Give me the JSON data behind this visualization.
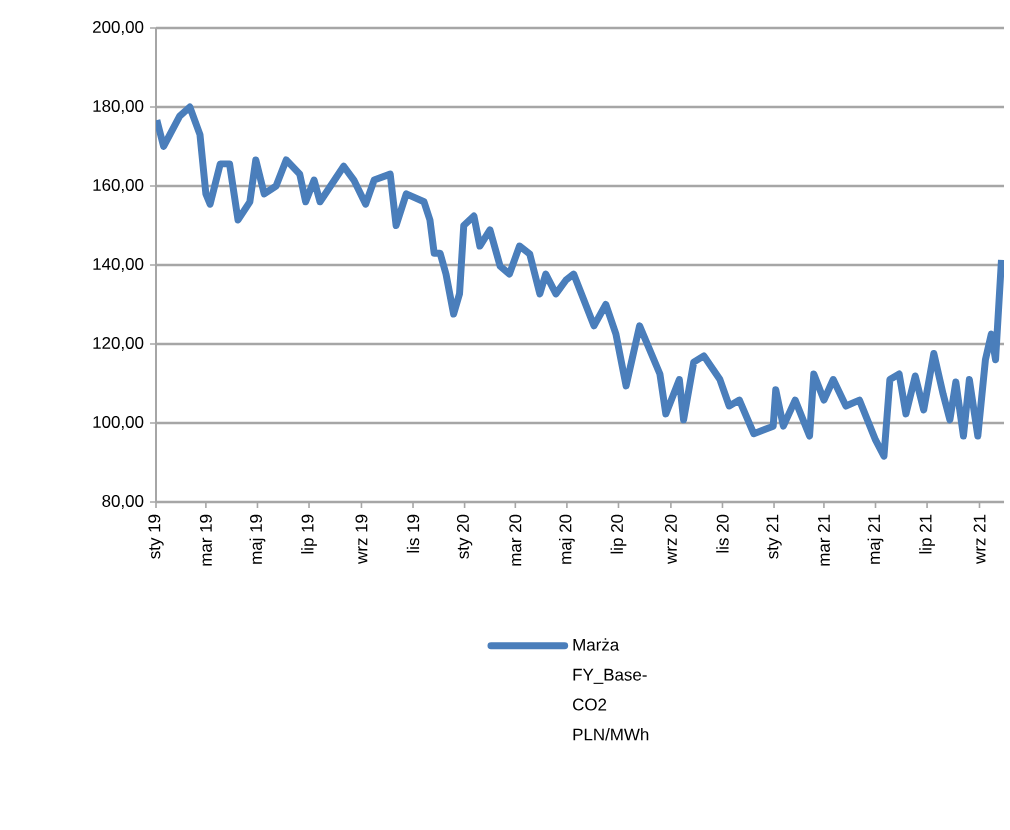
{
  "chart_data": {
    "type": "line",
    "legend": "bottom",
    "grid": "y",
    "line_style": "solid",
    "marker": "none",
    "xlim": [
      "2019-01-01",
      "2021-09-30"
    ],
    "xticks": [
      {
        "value": "2019-01-01",
        "label": "sty 19"
      },
      {
        "value": "2019-03-01",
        "label": "mar 19"
      },
      {
        "value": "2019-05-01",
        "label": "maj 19"
      },
      {
        "value": "2019-07-01",
        "label": "lip 19"
      },
      {
        "value": "2019-09-01",
        "label": "wrz 19"
      },
      {
        "value": "2019-11-01",
        "label": "lis 19"
      },
      {
        "value": "2020-01-01",
        "label": "sty 20"
      },
      {
        "value": "2020-03-01",
        "label": "mar 20"
      },
      {
        "value": "2020-05-01",
        "label": "maj 20"
      },
      {
        "value": "2020-07-01",
        "label": "lip 20"
      },
      {
        "value": "2020-09-01",
        "label": "wrz 20"
      },
      {
        "value": "2020-11-01",
        "label": "lis 20"
      },
      {
        "value": "2021-01-01",
        "label": "sty 21"
      },
      {
        "value": "2021-03-01",
        "label": "mar 21"
      },
      {
        "value": "2021-05-01",
        "label": "maj 21"
      },
      {
        "value": "2021-07-01",
        "label": "lip 21"
      },
      {
        "value": "2021-09-01",
        "label": "wrz 21"
      }
    ],
    "ylim": [
      80,
      200
    ],
    "yticks": [
      {
        "value": 80,
        "label": "80,00"
      },
      {
        "value": 100,
        "label": "100,00"
      },
      {
        "value": 120,
        "label": "120,00"
      },
      {
        "value": 140,
        "label": "140,00"
      },
      {
        "value": 160,
        "label": "160,00"
      },
      {
        "value": 180,
        "label": "180,00"
      },
      {
        "value": 200,
        "label": "200,00"
      }
    ],
    "series": [
      {
        "name": "Marża FY_Base-CO2 PLN/MWh",
        "color": "#4a7ebb",
        "x": [
          "2019-01-02",
          "2019-01-10",
          "2019-01-29",
          "2019-02-10",
          "2019-02-22",
          "2019-03-01",
          "2019-03-06",
          "2019-03-18",
          "2019-03-29",
          "2019-04-08",
          "2019-04-22",
          "2019-04-29",
          "2019-05-09",
          "2019-05-23",
          "2019-06-04",
          "2019-06-20",
          "2019-06-27",
          "2019-07-07",
          "2019-07-14",
          "2019-08-11",
          "2019-08-23",
          "2019-09-06",
          "2019-09-16",
          "2019-10-05",
          "2019-10-12",
          "2019-10-24",
          "2019-11-14",
          "2019-11-21",
          "2019-11-26",
          "2019-12-03",
          "2019-12-10",
          "2019-12-19",
          "2019-12-26",
          "2019-12-31",
          "2020-01-12",
          "2020-01-19",
          "2020-01-31",
          "2020-02-12",
          "2020-02-23",
          "2020-03-06",
          "2020-03-18",
          "2020-03-30",
          "2020-04-06",
          "2020-04-18",
          "2020-04-30",
          "2020-05-09",
          "2020-06-02",
          "2020-06-16",
          "2020-06-28",
          "2020-07-10",
          "2020-07-26",
          "2020-08-19",
          "2020-08-26",
          "2020-09-11",
          "2020-09-16",
          "2020-09-28",
          "2020-10-10",
          "2020-10-29",
          "2020-11-09",
          "2020-11-21",
          "2020-12-08",
          "2020-12-31",
          "2021-01-03",
          "2021-01-12",
          "2021-01-26",
          "2021-02-12",
          "2021-02-17",
          "2021-03-01",
          "2021-03-12",
          "2021-03-27",
          "2021-04-12",
          "2021-05-01",
          "2021-05-11",
          "2021-05-18",
          "2021-05-29",
          "2021-06-06",
          "2021-06-17",
          "2021-06-27",
          "2021-07-09",
          "2021-07-20",
          "2021-07-28",
          "2021-08-04",
          "2021-08-13",
          "2021-08-20",
          "2021-08-30",
          "2021-09-08",
          "2021-09-15",
          "2021-09-20",
          "2021-09-27"
        ],
        "values": [
          176.7,
          170,
          177.7,
          180,
          173,
          158,
          155.4,
          165.6,
          165.6,
          151.4,
          156,
          166.6,
          158,
          160,
          166.6,
          163,
          156,
          161.5,
          156,
          165,
          161.5,
          155.4,
          161.5,
          163,
          150,
          158,
          156,
          151.4,
          143,
          143,
          137.7,
          127.6,
          132.7,
          150,
          152.4,
          144.8,
          148.9,
          139.7,
          137.7,
          144.8,
          142.8,
          132.7,
          137.7,
          132.7,
          136.2,
          137.7,
          124.6,
          130,
          122.5,
          109.4,
          124.6,
          112.4,
          102.3,
          111,
          100.8,
          115.4,
          117,
          111,
          104.3,
          105.8,
          97.3,
          99.2,
          108.4,
          99.2,
          105.8,
          96.7,
          112.4,
          105.8,
          111,
          104.3,
          105.8,
          95.7,
          91.6,
          111,
          112.4,
          102.3,
          111.9,
          103.3,
          117.6,
          107.3,
          100.8,
          110.4,
          96.7,
          111,
          96.7,
          116,
          122.5,
          116,
          141.3
        ]
      }
    ]
  }
}
